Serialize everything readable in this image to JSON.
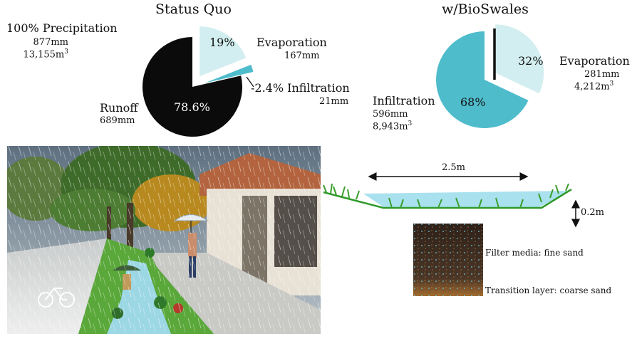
{
  "status_quo": {
    "title": "Status Quo",
    "precipitation": {
      "label": "100% Precipitation",
      "mm": "877mm",
      "volume": "13,155m",
      "volume_sup": "3"
    },
    "evaporation": {
      "label": "Evaporation",
      "mm": "167mm",
      "percent": "19%"
    },
    "infiltration": {
      "label": "-2.4% Infiltration",
      "mm": "21mm"
    },
    "runoff": {
      "label": "Runoff",
      "mm": "689mm",
      "percent": "78.6%"
    }
  },
  "bioswales": {
    "title": "w/BioSwales",
    "evaporation": {
      "label": "Evaporation",
      "mm": "281mm",
      "volume": "4,212m",
      "volume_sup": "3",
      "percent": "32%"
    },
    "infiltration": {
      "label": "Infiltration",
      "mm": "596mm",
      "volume": "8,943m",
      "volume_sup": "3",
      "percent": "68%"
    }
  },
  "cross_section": {
    "width_label": "2.5m",
    "depth_label": "0.2m",
    "filter_label": "Filter media: fine sand",
    "transition_label": "Transition layer: coarse sand"
  },
  "chart_data": [
    {
      "type": "pie",
      "title": "Status Quo",
      "categories": [
        "Runoff",
        "Evaporation",
        "Infiltration"
      ],
      "values": [
        78.6,
        19,
        2.4
      ]
    },
    {
      "type": "pie",
      "title": "w/BioSwales",
      "categories": [
        "Infiltration",
        "Evaporation"
      ],
      "values": [
        68,
        32
      ]
    }
  ],
  "colors": {
    "runoff": "#0b0b0b",
    "evaporation": "#d3eef0",
    "infiltration": "#4fbccc",
    "grass": "#3f9a2e",
    "water": "#a8e2ee",
    "soil": "#3b2a1e",
    "gravel": "#9a6a3a"
  },
  "illustration": {
    "name": "street-rendering",
    "icon": "bicycle-icon"
  }
}
